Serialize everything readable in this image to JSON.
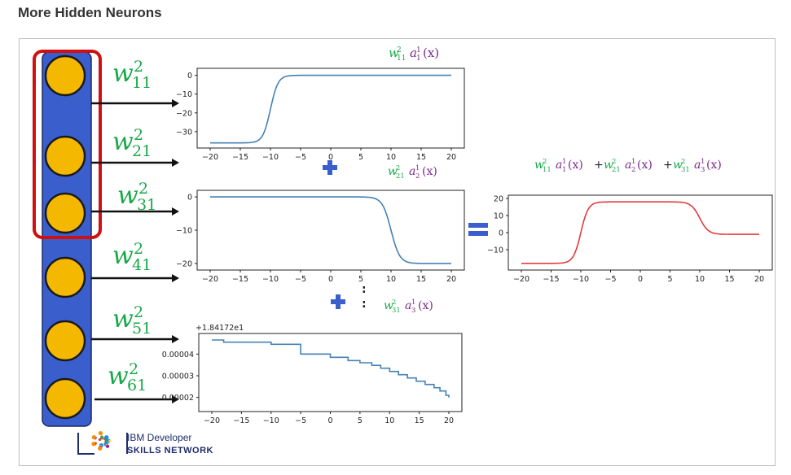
{
  "page": {
    "title": "More Hidden Neurons"
  },
  "colors": {
    "column": "#3a5fcd",
    "neuron": "#f5b800",
    "highlight": "#d01010",
    "weight": "#18a848",
    "activation": "#7a2a8a",
    "line": "#4682b4",
    "sum_line": "#e03c3c",
    "plus": "#3a5fcd"
  },
  "weights": [
    {
      "base": "w",
      "sup": "2",
      "sub": "11"
    },
    {
      "base": "w",
      "sup": "2",
      "sub": "21"
    },
    {
      "base": "w",
      "sup": "2",
      "sub": "31"
    },
    {
      "base": "w",
      "sup": "2",
      "sub": "41"
    },
    {
      "base": "w",
      "sup": "2",
      "sub": "51"
    },
    {
      "base": "w",
      "sup": "2",
      "sub": "61"
    }
  ],
  "labels": {
    "term1": {
      "w_sub": "11",
      "a_sub": "1"
    },
    "term2": {
      "w_sub": "21",
      "a_sub": "2"
    },
    "term3": {
      "w_sub": "31",
      "a_sub": "3"
    },
    "x_arg": "(x)",
    "plus": "+",
    "sum_full": "w₁₁² a₁¹(x)+ w₂₁² a₂¹(x) + w₃₁² a₃¹ (x)",
    "ellipsis": ":"
  },
  "logo": {
    "line1": "IBM Developer",
    "line2": "SKILLS NETWORK"
  },
  "chart_data": [
    {
      "type": "line",
      "xlim": [
        -20,
        20
      ],
      "xticks": [
        "−20",
        "−15",
        "−10",
        "−5",
        "0",
        "5",
        "10",
        "15",
        "20"
      ],
      "yticks": [
        "0",
        "−10",
        "−20",
        "−30"
      ],
      "ylim": [
        -37,
        2
      ],
      "shape": "sigmoid-rise",
      "y_low": -36,
      "y_high": 0,
      "center": -10
    },
    {
      "type": "line",
      "xlim": [
        -20,
        20
      ],
      "xticks": [
        "−20",
        "−15",
        "−10",
        "−5",
        "0",
        "5",
        "10",
        "15",
        "20"
      ],
      "yticks": [
        "0",
        "−10",
        "−20"
      ],
      "ylim": [
        -21,
        1
      ],
      "shape": "sigmoid-fall",
      "y_high": 0,
      "y_low": -20,
      "center": 10
    },
    {
      "type": "line",
      "xlim": [
        -20,
        20
      ],
      "xticks": [
        "−20",
        "−15",
        "−10",
        "−5",
        "0",
        "5",
        "10",
        "15",
        "20"
      ],
      "yticks": [
        "0.00004",
        "0.00003",
        "0.00002"
      ],
      "offset_label": "+1.84172e1",
      "ylim": [
        1.5e-05,
        4.8e-05
      ],
      "shape": "staircase-decline"
    },
    {
      "type": "line",
      "xlim": [
        -20,
        20
      ],
      "xticks": [
        "−20",
        "−15",
        "−10",
        "−5",
        "0",
        "5",
        "10",
        "15",
        "20"
      ],
      "yticks": [
        "20",
        "10",
        "0",
        "−10"
      ],
      "ylim": [
        -20,
        20
      ],
      "shape": "bump",
      "y_base_left": -18,
      "y_top": 18,
      "y_base_right": -1
    }
  ]
}
